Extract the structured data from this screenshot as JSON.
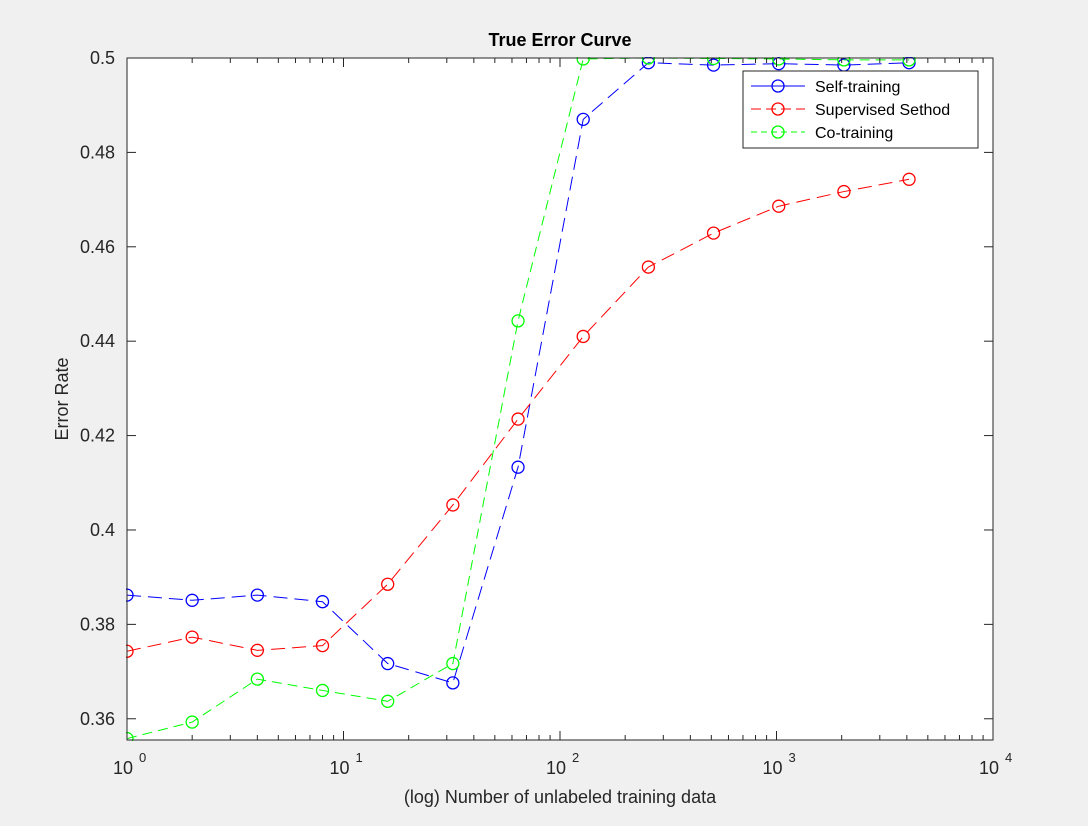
{
  "chart_data": {
    "type": "line",
    "title": "True Error Curve",
    "xlabel": "(log) Number of unlabeled training data",
    "ylabel": "Error Rate",
    "xscale": "log",
    "xlim": [
      1,
      10000
    ],
    "ylim": [
      0.3555,
      0.5
    ],
    "yticks": [
      0.36,
      0.38,
      0.4,
      0.42,
      0.44,
      0.46,
      0.48,
      0.5
    ],
    "ytick_labels": [
      "0.36",
      "0.38",
      "0.4",
      "0.42",
      "0.44",
      "0.46",
      "0.48",
      "0.5"
    ],
    "xticks": [
      1,
      10,
      100,
      1000,
      10000
    ],
    "xtick_labels": [
      {
        "base": "10",
        "exp": "0"
      },
      {
        "base": "10",
        "exp": "1"
      },
      {
        "base": "10",
        "exp": "2"
      },
      {
        "base": "10",
        "exp": "3"
      },
      {
        "base": "10",
        "exp": "4"
      }
    ],
    "grid": false,
    "legend_position": "top-right",
    "x": [
      1,
      2,
      4,
      8,
      16,
      32,
      64,
      128,
      256,
      512,
      1024,
      2048,
      4096
    ],
    "series": [
      {
        "name": "Self-training",
        "color": "#0000ff",
        "values": [
          0.3862,
          0.3851,
          0.3862,
          0.3848,
          0.3717,
          0.3676,
          0.4133,
          0.487,
          0.499,
          0.4985,
          0.4988,
          0.4985,
          0.499
        ]
      },
      {
        "name": "Supervised Sethod",
        "color": "#ff0000",
        "values": [
          0.3743,
          0.3773,
          0.3745,
          0.3755,
          0.3885,
          0.4053,
          0.4235,
          0.441,
          0.4557,
          0.4629,
          0.4686,
          0.4717,
          0.4743
        ]
      },
      {
        "name": "Co-training",
        "color": "#00ff00",
        "values": [
          0.3558,
          0.3593,
          0.3684,
          0.366,
          0.3637,
          0.3717,
          0.4443,
          0.4998,
          0.5,
          0.4999,
          0.4998,
          0.4996,
          0.4996
        ]
      }
    ]
  }
}
